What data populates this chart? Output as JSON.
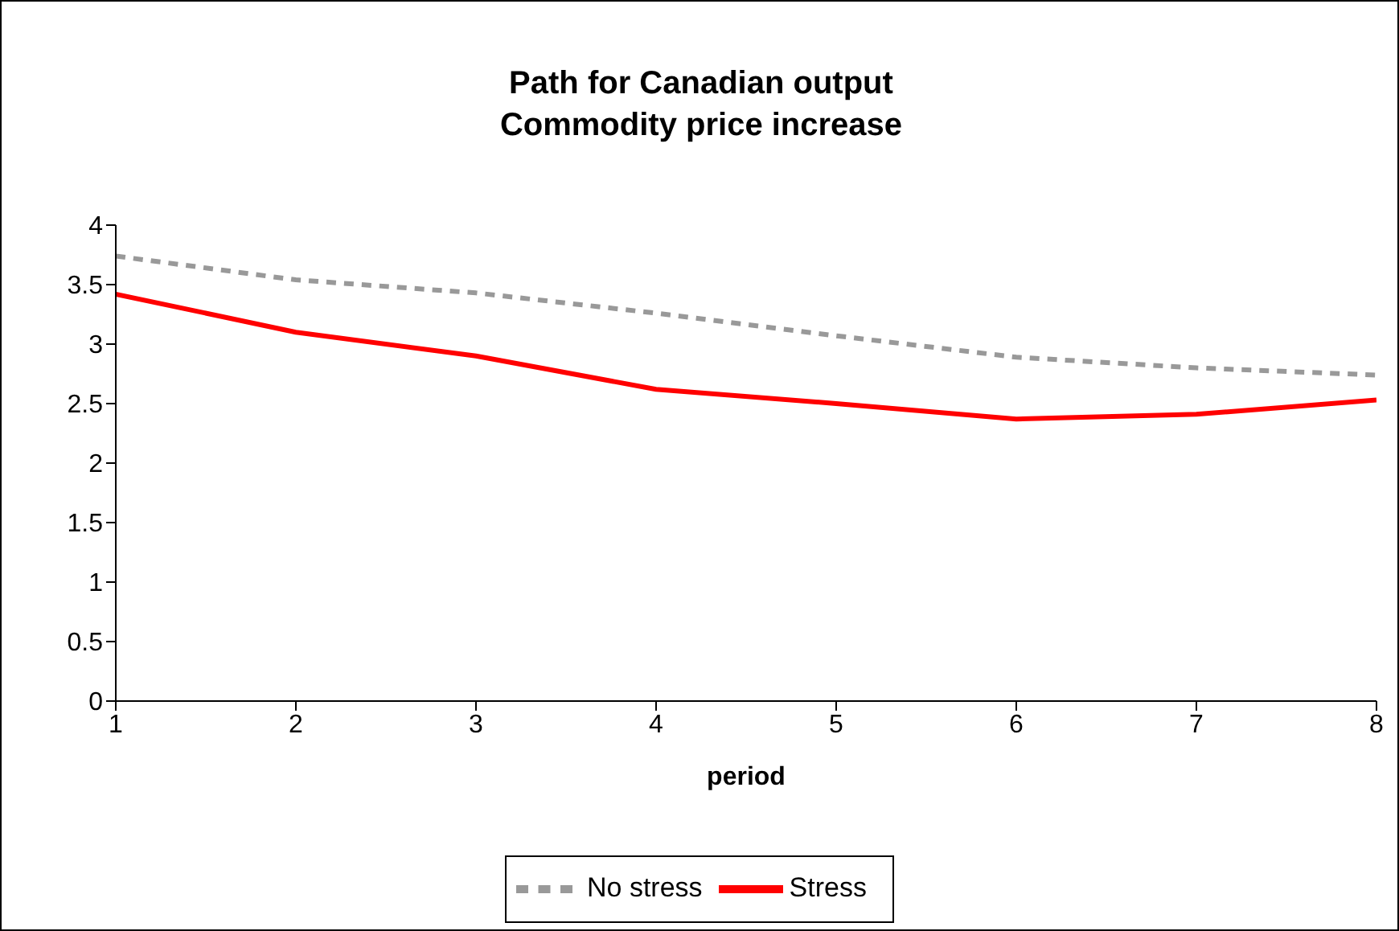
{
  "chart_data": {
    "type": "line",
    "title": "Path for Canadian output",
    "subtitle": "Commodity price increase",
    "xlabel": "period",
    "x": [
      1,
      2,
      3,
      4,
      5,
      6,
      7,
      8
    ],
    "series": [
      {
        "name": "No stress",
        "color": "#999999",
        "line_style": "dashed",
        "values": [
          3.74,
          3.54,
          3.43,
          3.26,
          3.07,
          2.89,
          2.8,
          2.74
        ]
      },
      {
        "name": "Stress",
        "color": "#ff0000",
        "line_style": "solid",
        "values": [
          3.42,
          3.1,
          2.9,
          2.62,
          2.5,
          2.37,
          2.41,
          2.53
        ]
      }
    ],
    "xlim": [
      1,
      8
    ],
    "xticks": [
      1,
      2,
      3,
      4,
      5,
      6,
      7,
      8
    ],
    "ylim": [
      0,
      4
    ],
    "yticks": [
      0,
      0.5,
      1,
      1.5,
      2,
      2.5,
      3,
      3.5,
      4
    ],
    "grid": false,
    "legend": "bottom",
    "marker": "none"
  }
}
